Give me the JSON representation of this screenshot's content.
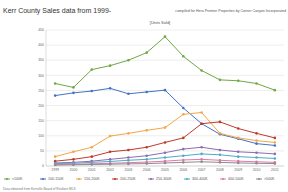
{
  "chart_data": {
    "type": "line",
    "title": "Kerr County Sales data from 1999-",
    "subtitle": "compiled for Hera Premier Properties by Corner Canyon Incorporated",
    "annotations": [
      "[Units Sold]",
      "Data obtained from Kerrville Board of Realtors MLS"
    ],
    "categories": [
      "1999",
      "2000",
      "2001",
      "2002",
      "2003",
      "2004",
      "2005",
      "2006",
      "2007",
      "2008",
      "2009",
      "2010",
      "2011"
    ],
    "ylim": [
      0,
      450
    ],
    "yticks": [
      0,
      50,
      100,
      150,
      200,
      250,
      300,
      350,
      400,
      450
    ],
    "grid": true,
    "legend": "bottom",
    "marker": "circle",
    "series": [
      {
        "name": "<100K",
        "color": "#70a845",
        "values": [
          273,
          260,
          319,
          332,
          350,
          375,
          428,
          363,
          316,
          285,
          282,
          273,
          251
        ]
      },
      {
        "name": "100-150K",
        "color": "#4472c4",
        "values": [
          233,
          242,
          248,
          257,
          239,
          245,
          251,
          192,
          140,
          105,
          90,
          74,
          68
        ]
      },
      {
        "name": "150-200K",
        "color": "#f0a848",
        "values": [
          31,
          47,
          62,
          99,
          108,
          118,
          127,
          171,
          177,
          108,
          93,
          84,
          78
        ]
      },
      {
        "name": "200-250K",
        "color": "#c0392b",
        "values": [
          16,
          22,
          31,
          47,
          53,
          62,
          78,
          93,
          140,
          146,
          124,
          108,
          93
        ]
      },
      {
        "name": "250-300K",
        "color": "#8e6bb0",
        "values": [
          10,
          12,
          16,
          22,
          28,
          34,
          44,
          56,
          62,
          53,
          47,
          44,
          40
        ]
      },
      {
        "name": "300-400K",
        "color": "#4bacc6",
        "values": [
          8,
          9,
          12,
          15,
          19,
          22,
          28,
          34,
          40,
          37,
          31,
          28,
          25
        ]
      },
      {
        "name": "400-500K",
        "color": "#e377a8",
        "values": [
          5,
          6,
          7,
          9,
          11,
          13,
          16,
          20,
          22,
          19,
          16,
          14,
          12
        ]
      },
      {
        "name": ">500K",
        "color": "#8c8c8c",
        "values": [
          3,
          4,
          5,
          6,
          7,
          8,
          10,
          12,
          14,
          12,
          10,
          9,
          8
        ]
      }
    ]
  }
}
